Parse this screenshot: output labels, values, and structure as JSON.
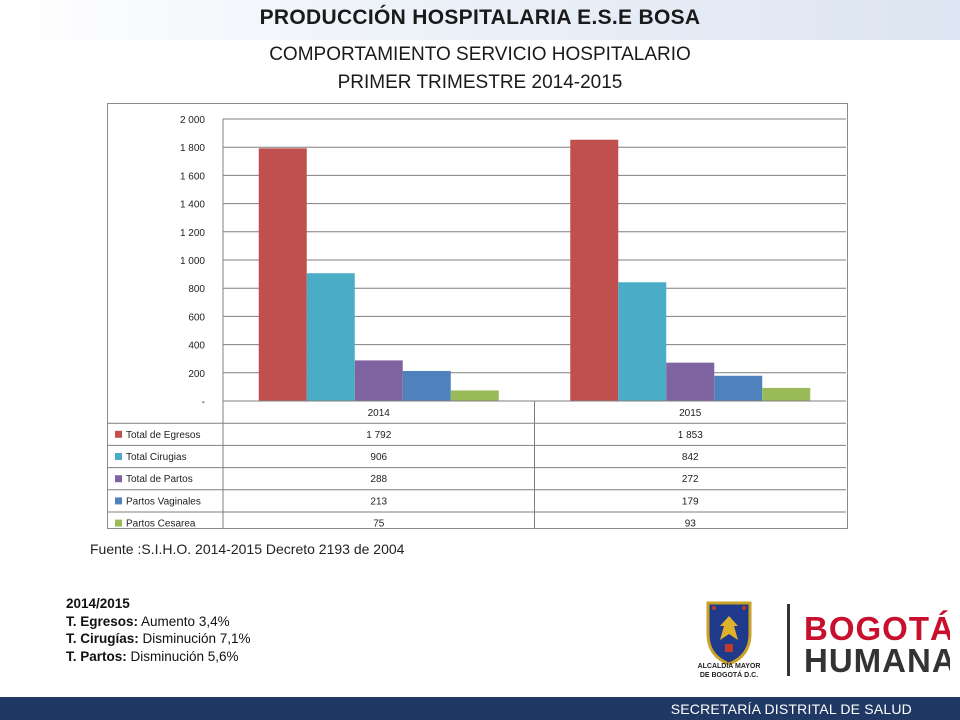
{
  "header": {
    "title": "PRODUCCIÓN HOSPITALARIA E.S.E BOSA"
  },
  "subtitle_line1": "COMPORTAMIENTO SERVICIO HOSPITALARIO",
  "subtitle_line2": "PRIMER TRIMESTRE 2014-2015",
  "chart_data": {
    "type": "bar",
    "categories": [
      "2014",
      "2015"
    ],
    "ylim": [
      0,
      2000
    ],
    "yticks": [
      0,
      200,
      400,
      600,
      800,
      1000,
      1200,
      1400,
      1600,
      1800,
      2000
    ],
    "ytick_labels": [
      "-",
      "200",
      "400",
      "600",
      "800",
      "1 000",
      "1 200",
      "1 400",
      "1 600",
      "1 800",
      "2 000"
    ],
    "grid": true,
    "legend": "data-table",
    "series": [
      {
        "name": "Total de Egresos",
        "values": [
          1792,
          1853
        ],
        "labels": [
          "1 792",
          "1 853"
        ],
        "color": "#c0504d"
      },
      {
        "name": "Total Cirugias",
        "values": [
          906,
          842
        ],
        "labels": [
          "906",
          "842"
        ],
        "color": "#4bacc6"
      },
      {
        "name": "Total de Partos",
        "values": [
          288,
          272
        ],
        "labels": [
          "288",
          "272"
        ],
        "color": "#8064a2"
      },
      {
        "name": "Partos Vaginales",
        "values": [
          213,
          179
        ],
        "labels": [
          "213",
          "179"
        ],
        "color": "#4f81bd"
      },
      {
        "name": "Partos Cesarea",
        "values": [
          75,
          93
        ],
        "labels": [
          "75",
          "93"
        ],
        "color": "#9bbb59"
      }
    ]
  },
  "source": "Fuente :S.I.H.O. 2014-2015  Decreto 2193 de 2004",
  "summary": {
    "period": "2014/2015",
    "lines": [
      {
        "label": "T. Egresos:",
        "text": " Aumento 3,4%"
      },
      {
        "label": "T. Cirugías:",
        "text": " Disminución 7,1%"
      },
      {
        "label": "T. Partos:",
        "text": " Disminución 5,6%"
      }
    ]
  },
  "logos": {
    "alcaldia_line1": "ALCALDÍA MAYOR",
    "alcaldia_line2": "DE BOGOTÁ D.C.",
    "brand_line1": "BOGOTÁ",
    "brand_line2": "HUMANA"
  },
  "footer": {
    "text": "SECRETARÍA DISTRITAL DE SALUD"
  }
}
